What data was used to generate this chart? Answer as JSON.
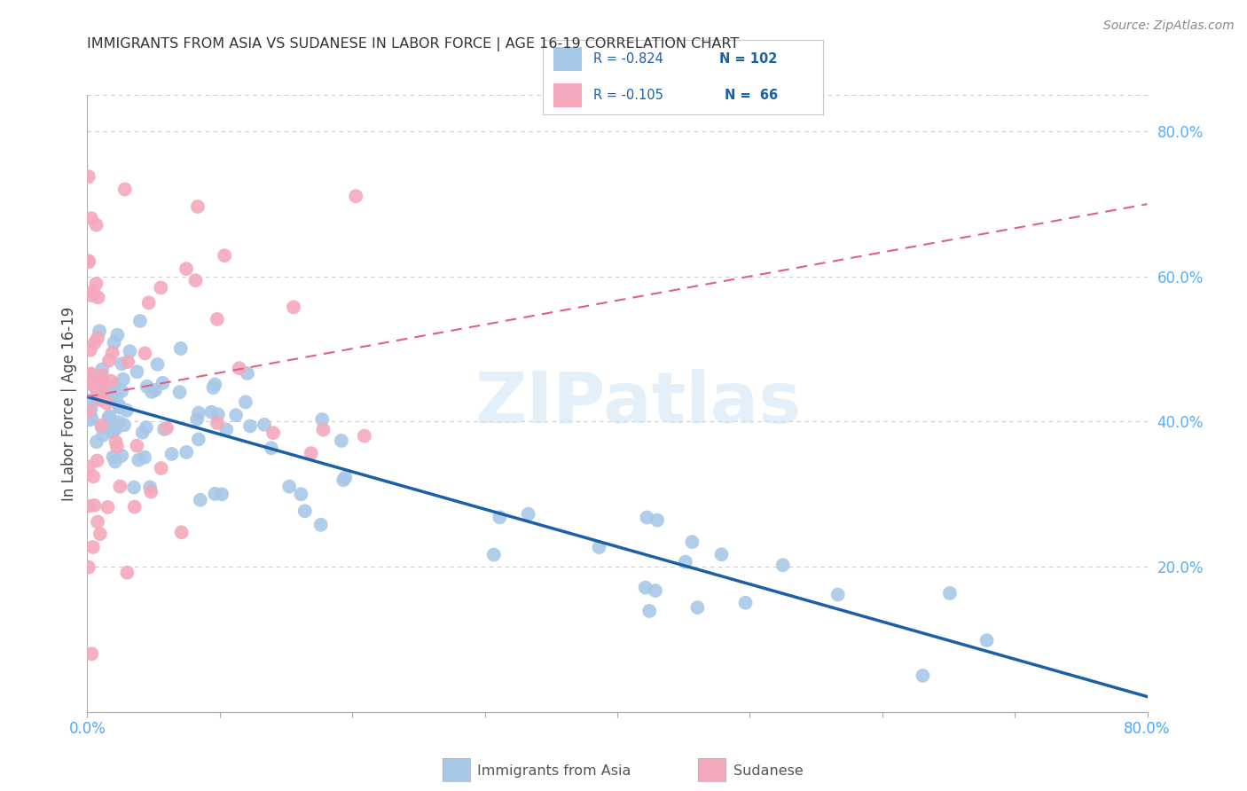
{
  "title": "IMMIGRANTS FROM ASIA VS SUDANESE IN LABOR FORCE | AGE 16-19 CORRELATION CHART",
  "source": "Source: ZipAtlas.com",
  "ylabel": "In Labor Force | Age 16-19",
  "xlim": [
    0.0,
    0.8
  ],
  "ylim": [
    0.0,
    0.85
  ],
  "legend_r_asia": "-0.824",
  "legend_n_asia": "102",
  "legend_r_sudan": "-0.105",
  "legend_n_sudan": "66",
  "color_asia": "#a8c8e8",
  "color_sudan": "#f4a8bc",
  "trendline_asia_color": "#1a5fa8",
  "trendline_sudan_color": "#e06080",
  "background_color": "#ffffff",
  "grid_color": "#cccccc",
  "right_tick_color": "#5badee",
  "title_color": "#333333",
  "source_color": "#888888"
}
